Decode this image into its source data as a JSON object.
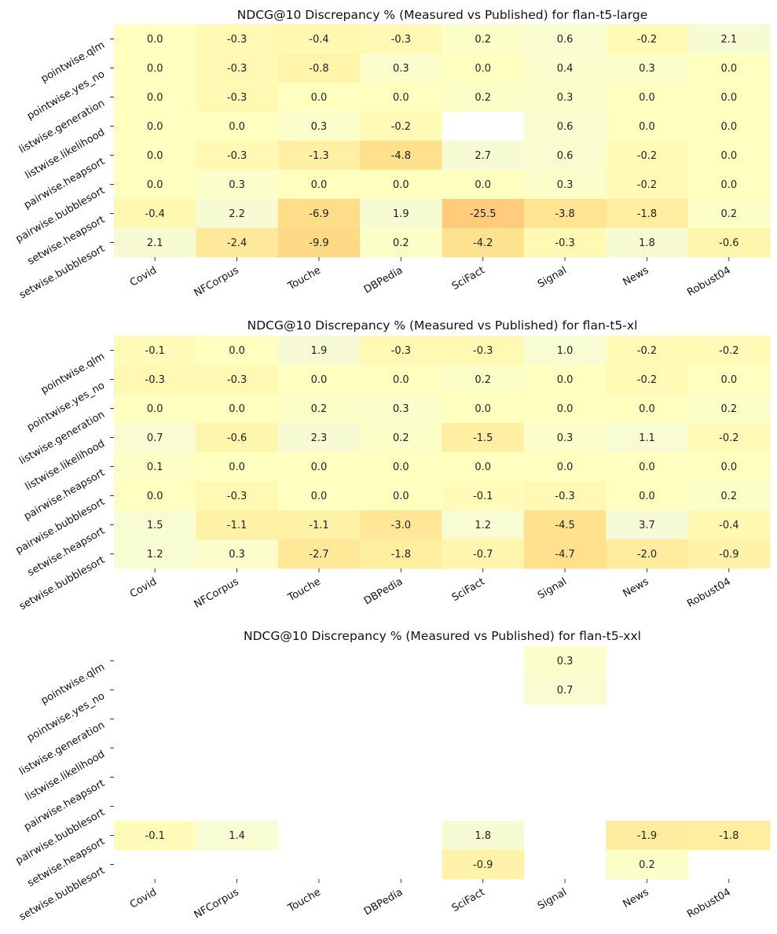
{
  "chart_data": [
    {
      "type": "heatmap",
      "title": "NDCG@10 Discrepancy % (Measured vs Published) for flan-t5-large",
      "x": [
        "Covid",
        "NFCorpus",
        "Touche",
        "DBPedia",
        "SciFact",
        "Signal",
        "News",
        "Robust04"
      ],
      "y": [
        "pointwise.qlm",
        "pointwise.yes_no",
        "listwise.generation",
        "listwise.likelihood",
        "pairwise.heapsort",
        "pairwise.bubblesort",
        "setwise.heapsort",
        "setwise.bubblesort"
      ],
      "values": [
        [
          0.0,
          -0.3,
          -0.4,
          -0.3,
          0.2,
          0.6,
          -0.2,
          2.1
        ],
        [
          0.0,
          -0.3,
          -0.8,
          0.3,
          0.0,
          0.4,
          0.3,
          0.0
        ],
        [
          0.0,
          -0.3,
          0.0,
          0.0,
          0.2,
          0.3,
          0.0,
          0.0
        ],
        [
          0.0,
          0.0,
          0.3,
          -0.2,
          null,
          0.6,
          0.0,
          0.0
        ],
        [
          0.0,
          -0.3,
          -1.3,
          -4.8,
          2.7,
          0.6,
          -0.2,
          0.0
        ],
        [
          0.0,
          0.3,
          0.0,
          0.0,
          0.0,
          0.3,
          -0.2,
          0.0
        ],
        [
          -0.4,
          2.2,
          -6.9,
          1.9,
          -25.5,
          -3.8,
          -1.8,
          0.2
        ],
        [
          2.1,
          -2.4,
          -9.9,
          0.2,
          -4.2,
          -0.3,
          1.8,
          -0.6
        ]
      ]
    },
    {
      "type": "heatmap",
      "title": "NDCG@10 Discrepancy % (Measured vs Published) for flan-t5-xl",
      "x": [
        "Covid",
        "NFCorpus",
        "Touche",
        "DBPedia",
        "SciFact",
        "Signal",
        "News",
        "Robust04"
      ],
      "y": [
        "pointwise.qlm",
        "pointwise.yes_no",
        "listwise.generation",
        "listwise.likelihood",
        "pairwise.heapsort",
        "pairwise.bubblesort",
        "setwise.heapsort",
        "setwise.bubblesort"
      ],
      "values": [
        [
          -0.1,
          0.0,
          1.9,
          -0.3,
          -0.3,
          1.0,
          -0.2,
          -0.2
        ],
        [
          -0.3,
          -0.3,
          0.0,
          0.0,
          0.2,
          0.0,
          -0.2,
          0.0
        ],
        [
          0.0,
          0.0,
          0.2,
          0.3,
          0.0,
          0.0,
          0.0,
          0.2
        ],
        [
          0.7,
          -0.6,
          2.3,
          0.2,
          -1.5,
          0.3,
          1.1,
          -0.2
        ],
        [
          0.1,
          0.0,
          0.0,
          0.0,
          0.0,
          0.0,
          0.0,
          0.0
        ],
        [
          0.0,
          -0.3,
          0.0,
          0.0,
          -0.1,
          -0.3,
          0.0,
          0.2
        ],
        [
          1.5,
          -1.1,
          -1.1,
          -3.0,
          1.2,
          -4.5,
          3.7,
          -0.4
        ],
        [
          1.2,
          0.3,
          -2.7,
          -1.8,
          -0.7,
          -4.7,
          -2.0,
          -0.9
        ]
      ]
    },
    {
      "type": "heatmap",
      "title": "NDCG@10 Discrepancy % (Measured vs Published) for flan-t5-xxl",
      "x": [
        "Covid",
        "NFCorpus",
        "Touche",
        "DBPedia",
        "SciFact",
        "Signal",
        "News",
        "Robust04"
      ],
      "y": [
        "pointwise.qlm",
        "pointwise.yes_no",
        "listwise.generation",
        "listwise.likelihood",
        "pairwise.heapsort",
        "pairwise.bubblesort",
        "setwise.heapsort",
        "setwise.bubblesort"
      ],
      "values": [
        [
          null,
          null,
          null,
          null,
          null,
          0.3,
          null,
          null
        ],
        [
          null,
          null,
          null,
          null,
          null,
          0.7,
          null,
          null
        ],
        [
          null,
          null,
          null,
          null,
          null,
          null,
          null,
          null
        ],
        [
          null,
          null,
          null,
          null,
          null,
          null,
          null,
          null
        ],
        [
          null,
          null,
          null,
          null,
          null,
          null,
          null,
          null
        ],
        [
          null,
          null,
          null,
          null,
          null,
          null,
          null,
          null
        ],
        [
          -0.1,
          1.4,
          null,
          null,
          1.8,
          null,
          -1.9,
          -1.8
        ],
        [
          null,
          null,
          null,
          null,
          -0.9,
          null,
          0.2,
          null
        ]
      ]
    }
  ]
}
